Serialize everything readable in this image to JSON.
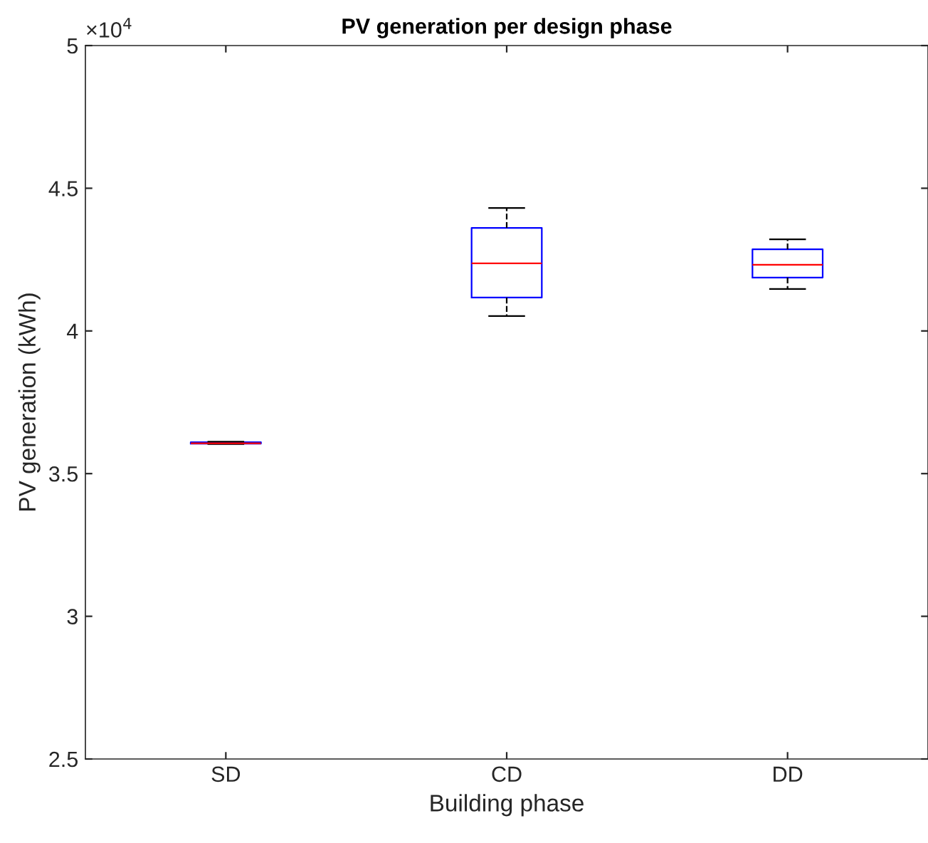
{
  "chart_data": {
    "type": "box",
    "title": "PV generation per design phase",
    "xlabel": "Building phase",
    "ylabel": "PV generation (kWh)",
    "categories": [
      "SD",
      "CD",
      "DD"
    ],
    "boxes": [
      {
        "low": 3.604,
        "q1": 3.605,
        "median": 3.606,
        "q3": 3.61,
        "high": 3.612
      },
      {
        "low": 4.052,
        "q1": 4.117,
        "median": 4.237,
        "q3": 4.361,
        "high": 4.431
      },
      {
        "low": 4.147,
        "q1": 4.187,
        "median": 4.232,
        "q3": 4.286,
        "high": 4.321
      }
    ],
    "color": "#0000ff",
    "ylim": [
      2.5,
      5
    ],
    "yticks": [
      2.5,
      3,
      3.5,
      4,
      4.5,
      5
    ],
    "annotations": [
      "×10$^{4}$"
    ],
    "grid": false
  }
}
